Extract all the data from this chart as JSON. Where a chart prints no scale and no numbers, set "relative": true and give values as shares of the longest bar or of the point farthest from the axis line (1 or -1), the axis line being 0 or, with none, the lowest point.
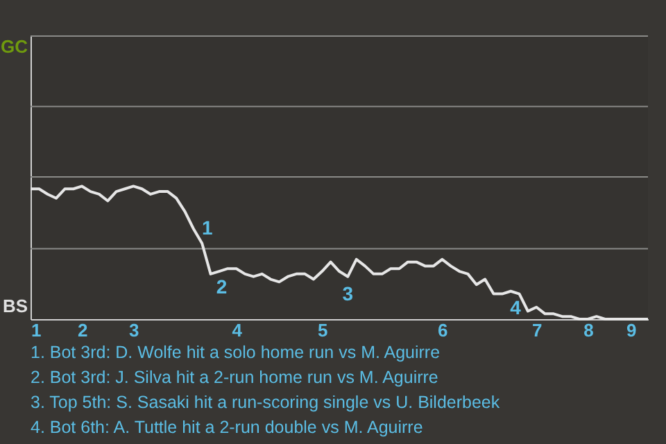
{
  "chart_data": {
    "type": "line",
    "relative": true,
    "categories": [
      "1",
      null,
      null,
      null,
      null,
      null,
      "2",
      null,
      null,
      null,
      null,
      null,
      "3",
      null,
      null,
      null,
      null,
      null,
      null,
      null,
      null,
      null,
      null,
      null,
      "4",
      null,
      null,
      null,
      null,
      null,
      null,
      null,
      null,
      null,
      "5",
      null,
      null,
      null,
      null,
      null,
      null,
      null,
      null,
      null,
      null,
      null,
      null,
      null,
      "6",
      null,
      null,
      null,
      null,
      null,
      null,
      null,
      null,
      null,
      null,
      "7",
      null,
      null,
      null,
      null,
      null,
      "8",
      null,
      null,
      null,
      null,
      "9",
      null,
      null
    ],
    "ref_lines": [
      {
        "axis": "y",
        "value": 0.53,
        "color": "#8a8a88"
      },
      {
        "axis": "y",
        "value": 1.07,
        "color": "#8a8a88"
      },
      {
        "axis": "y",
        "value": 1.6,
        "color": "#8a8a88"
      },
      {
        "axis": "y",
        "value": 2.13,
        "color": "#8a8a88"
      }
    ],
    "series": [
      {
        "color": "#e6e6e6",
        "values": [
          0.98,
          0.98,
          0.94,
          0.91,
          0.98,
          0.98,
          1,
          0.96,
          0.94,
          0.89,
          0.96,
          0.98,
          1,
          0.98,
          0.94,
          0.96,
          0.96,
          0.91,
          0.81,
          0.68,
          0.57,
          0.34,
          0.36,
          0.38,
          0.38,
          0.34,
          0.32,
          0.34,
          0.3,
          0.28,
          0.32,
          0.34,
          0.34,
          0.3,
          0.36,
          0.43,
          0.36,
          0.32,
          0.45,
          0.4,
          0.34,
          0.34,
          0.38,
          0.38,
          0.43,
          0.43,
          0.4,
          0.4,
          0.45,
          0.4,
          0.36,
          0.34,
          0.26,
          0.3,
          0.19,
          0.19,
          0.21,
          0.19,
          0.06,
          0.09,
          0.04,
          0.04,
          0.02,
          0.02,
          0,
          0,
          0.02,
          0,
          0,
          0,
          0,
          0,
          0
        ],
        "name": null
      }
    ],
    "annotations": [
      "GC",
      "BS",
      "1",
      "2",
      "3",
      "4",
      "1. Bot 3rd: D. Wolfe hit a solo home run vs M. Aguirre",
      "2. Bot 3rd: J. Silva hit a 2-run home run vs M. Aguirre",
      "3. Top 5th: S. Sasaki hit a run-scoring single vs U. Bilderbeek",
      "4. Bot 6th: A. Tuttle hit a 2-run double vs M. Aguirre"
    ]
  }
}
